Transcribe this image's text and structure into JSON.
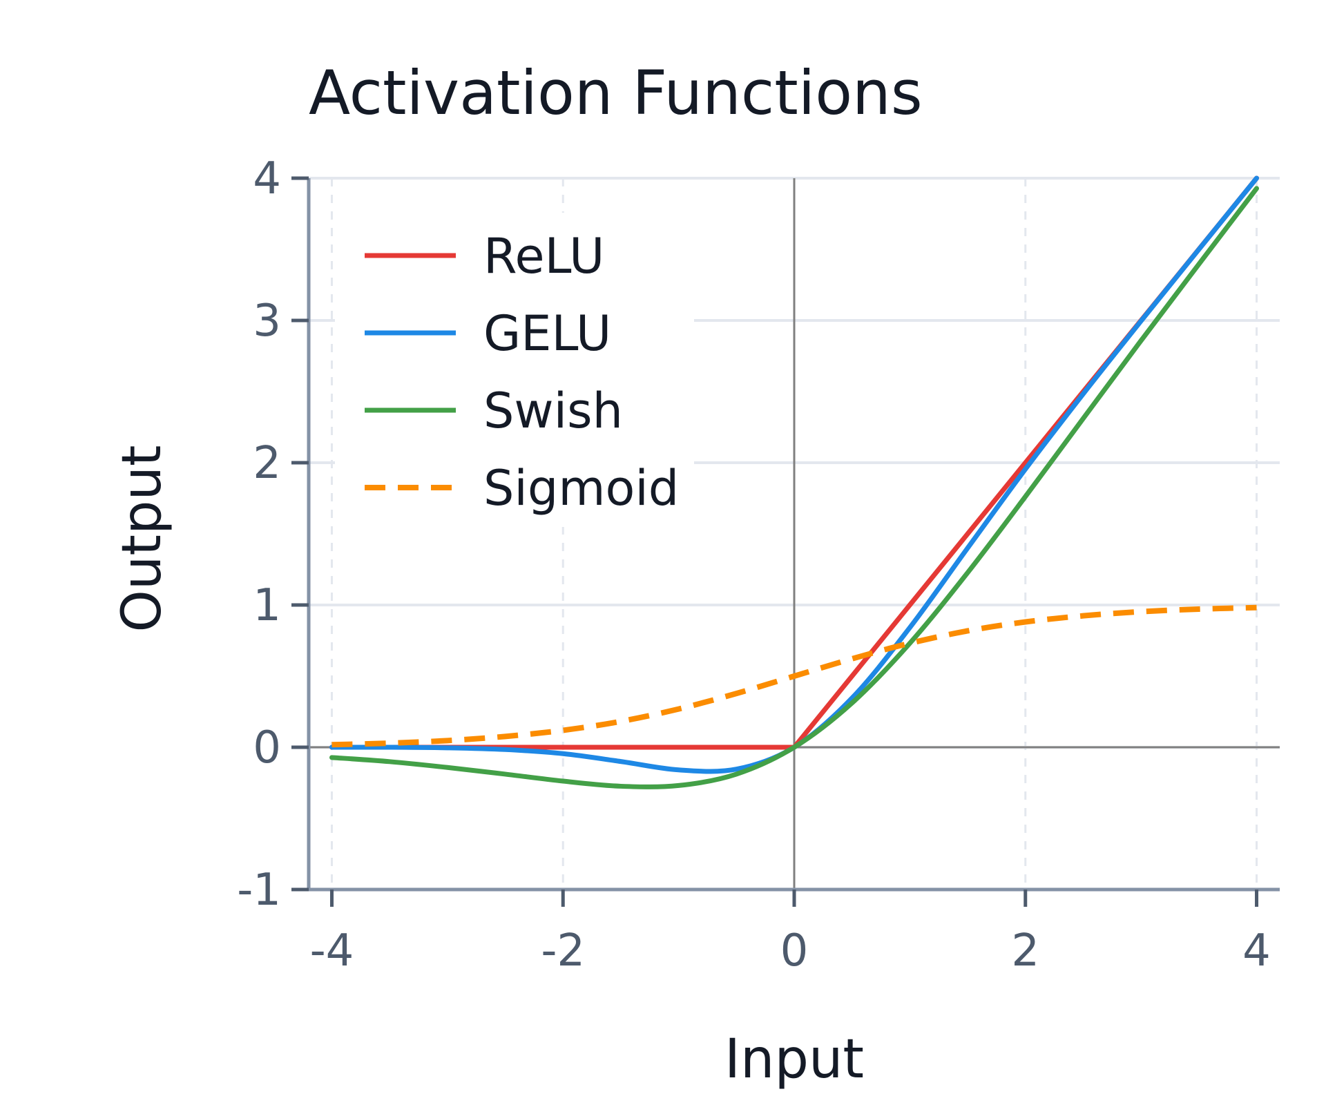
{
  "chart_data": {
    "type": "line",
    "title": "Activation Functions",
    "xlabel": "Input",
    "ylabel": "Output",
    "xlim": [
      -4.2,
      4.2
    ],
    "ylim": [
      -1,
      4
    ],
    "xticks": [
      -4,
      -2,
      0,
      2,
      4
    ],
    "yticks": [
      -1,
      0,
      1,
      2,
      3,
      4
    ],
    "xtick_labels": [
      "-4",
      "-2",
      "0",
      "2",
      "4"
    ],
    "ytick_labels": [
      "-1",
      "0",
      "1",
      "2",
      "3",
      "4"
    ],
    "grid": true,
    "legend_position": "top-left",
    "x": [
      -4,
      -3.5,
      -3,
      -2.5,
      -2,
      -1.5,
      -1,
      -0.5,
      0,
      0.5,
      1,
      1.5,
      2,
      2.5,
      3,
      3.5,
      4
    ],
    "series": [
      {
        "name": "ReLU",
        "color": "#e53935",
        "style": "solid",
        "values": [
          0,
          0,
          0,
          0,
          0,
          0,
          0,
          0,
          0,
          0.5,
          1,
          1.5,
          2,
          2.5,
          3,
          3.5,
          4
        ]
      },
      {
        "name": "GELU",
        "color": "#1e88e5",
        "style": "solid",
        "values": [
          0,
          0,
          -0.004,
          -0.016,
          -0.045,
          -0.1,
          -0.159,
          -0.154,
          0,
          0.346,
          0.841,
          1.4,
          1.955,
          2.484,
          2.996,
          3.499,
          4
        ]
      },
      {
        "name": "Swish",
        "color": "#43a047",
        "style": "solid",
        "values": [
          -0.072,
          -0.101,
          -0.142,
          -0.189,
          -0.238,
          -0.274,
          -0.269,
          -0.189,
          0,
          0.311,
          0.731,
          1.227,
          1.762,
          2.311,
          2.858,
          3.395,
          3.928
        ]
      },
      {
        "name": "Sigmoid",
        "color": "#fb8c00",
        "style": "dashed",
        "values": [
          0.018,
          0.029,
          0.047,
          0.076,
          0.119,
          0.182,
          0.269,
          0.378,
          0.5,
          0.622,
          0.731,
          0.818,
          0.881,
          0.924,
          0.953,
          0.971,
          0.982
        ]
      }
    ]
  },
  "colors": {
    "grid": "#e3e7ee",
    "axis": "#8492a6",
    "zero_line": "#808080",
    "tick_label": "#4d5a6c",
    "text": "#141a26"
  }
}
